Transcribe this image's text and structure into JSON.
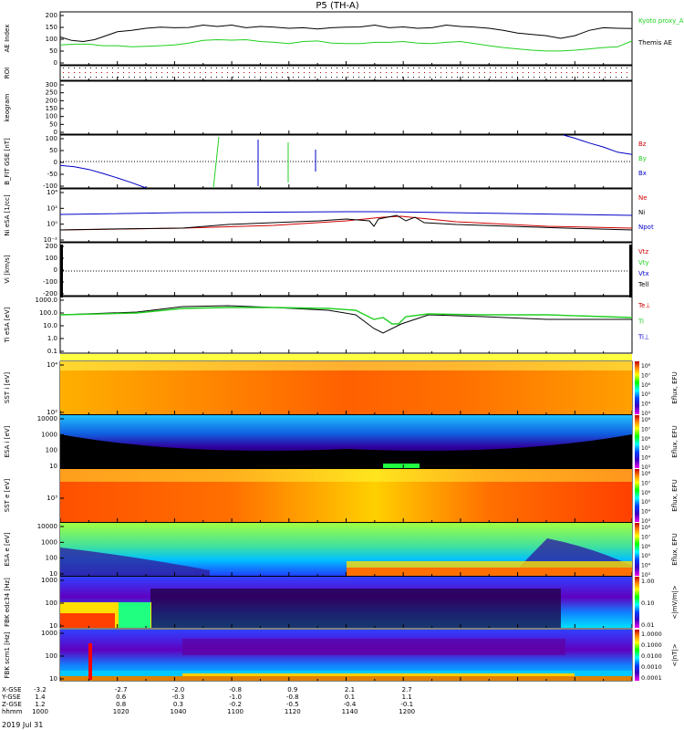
{
  "title": "P5 (TH-A)",
  "date_label": "2019 Jul 31",
  "colors": {
    "red": "#d00000",
    "green": "#20d020",
    "blue": "#0000c8",
    "black": "#000000"
  },
  "chart_data": [
    {
      "panel": "ae_index",
      "type": "line",
      "ylabel": "AE Index",
      "ylim": [
        0,
        200
      ],
      "yticks": [
        "200",
        "150",
        "100",
        "50",
        "0"
      ],
      "legend": [
        {
          "label": "Kyoto proxy_AE",
          "color": "green"
        },
        {
          "label": "Themis AE",
          "color": "black"
        }
      ],
      "series": [
        {
          "name": "Themis AE",
          "color": "black",
          "x": [
            1000,
            1004,
            1008,
            1012,
            1016,
            1020,
            1025,
            1030,
            1035,
            1040,
            1045,
            1050,
            1055,
            1060,
            1065,
            1070,
            1075,
            1080,
            1085,
            1090,
            1095,
            1100,
            1105,
            1110,
            1115,
            1120,
            1125,
            1130,
            1135,
            1140,
            1145,
            1150,
            1155,
            1160,
            1165,
            1170,
            1175,
            1180,
            1185,
            1190,
            1195,
            1200
          ],
          "y": [
            105,
            92,
            88,
            95,
            110,
            125,
            130,
            138,
            142,
            140,
            141,
            150,
            145,
            150,
            140,
            145,
            142,
            138,
            140,
            135,
            140,
            142,
            143,
            150,
            140,
            143,
            138,
            140,
            150,
            145,
            142,
            138,
            130,
            120,
            115,
            110,
            100,
            110,
            130,
            140,
            138,
            137
          ]
        },
        {
          "name": "Kyoto proxy_AE",
          "color": "green",
          "x": [
            1000,
            1005,
            1010,
            1015,
            1020,
            1025,
            1030,
            1035,
            1040,
            1045,
            1050,
            1055,
            1060,
            1065,
            1070,
            1075,
            1080,
            1085,
            1090,
            1095,
            1100,
            1105,
            1110,
            1115,
            1120,
            1125,
            1130,
            1135,
            1140,
            1145,
            1150,
            1155,
            1160,
            1165,
            1170,
            1175,
            1180,
            1185,
            1190,
            1195,
            1200
          ],
          "y": [
            75,
            78,
            78,
            72,
            72,
            68,
            70,
            72,
            75,
            82,
            92,
            95,
            93,
            95,
            88,
            85,
            80,
            88,
            90,
            82,
            80,
            80,
            85,
            85,
            88,
            82,
            80,
            85,
            88,
            80,
            72,
            65,
            60,
            55,
            52,
            52,
            55,
            60,
            65,
            68,
            90
          ]
        }
      ]
    },
    {
      "panel": "roi",
      "type": "scatter",
      "ylabel": "ROI"
    },
    {
      "panel": "keogram",
      "type": "line",
      "ylabel": "keogram",
      "ylim": [
        0,
        300
      ],
      "yticks": [
        "300",
        "250",
        "200",
        "150",
        "100",
        "50",
        "0"
      ]
    },
    {
      "panel": "b_field",
      "type": "line",
      "ylabel": "B_FIT GSE [nT]",
      "ylim": [
        -100,
        100
      ],
      "yticks": [
        "100",
        "50",
        "0",
        "-50",
        "-100"
      ],
      "legend": [
        {
          "label": "Bz",
          "color": "red"
        },
        {
          "label": "By",
          "color": "green"
        },
        {
          "label": "Bx",
          "color": "blue"
        }
      ],
      "series": [
        {
          "name": "Bx",
          "color": "blue",
          "x": [
            1000,
            1005,
            1010,
            1015,
            1020,
            1025,
            1030
          ],
          "y": [
            -15,
            -20,
            -30,
            -45,
            -62,
            -80,
            -100
          ]
        },
        {
          "name": "Bx",
          "color": "blue",
          "x": [
            1176,
            1180,
            1185,
            1190,
            1195,
            1200
          ],
          "y": [
            100,
            88,
            70,
            55,
            35,
            27
          ]
        }
      ]
    },
    {
      "panel": "density",
      "type": "line",
      "ylabel": "Ni eSA [1/cc]",
      "ytick_labels": [
        "10⁴",
        "10²",
        "10⁰",
        "10⁻²"
      ],
      "legend": [
        {
          "label": "Ne",
          "color": "red"
        },
        {
          "label": "Ni",
          "color": "black"
        },
        {
          "label": "Npot",
          "color": "blue"
        }
      ]
    },
    {
      "panel": "velocity",
      "type": "line",
      "ylabel": "Vi [km/s]",
      "ylim": [
        -300,
        300
      ],
      "yticks": [
        "200",
        "100",
        "0",
        "-100",
        "-200"
      ],
      "legend": [
        {
          "label": "Vtz",
          "color": "red"
        },
        {
          "label": "Vty",
          "color": "green"
        },
        {
          "label": "Vtx",
          "color": "blue"
        },
        {
          "label": "Tell",
          "color": "black"
        }
      ]
    },
    {
      "panel": "temperature",
      "type": "line",
      "ylabel": "Ti eSA [eV]",
      "yticks": [
        "1000.0",
        "100.0",
        "10.0",
        "1.0",
        "0.1"
      ],
      "legend": [
        {
          "label": "Te⊥",
          "color": "red"
        },
        {
          "label": "Ti",
          "color": "green"
        },
        {
          "label": "Ti⊥",
          "color": "blue"
        }
      ]
    },
    {
      "panel": "sst_i",
      "type": "heatmap",
      "ylabel": "SST i [eV]",
      "yticks": [
        "10⁴",
        "10²"
      ],
      "cbar_label": "Eflux, EFU"
    },
    {
      "panel": "esa_i",
      "type": "heatmap",
      "ylabel": "ESA i [eV]",
      "yticks": [
        "10000",
        "1000",
        "100",
        "10"
      ],
      "cbar_label": "Eflux, EFU"
    },
    {
      "panel": "sst_e",
      "type": "heatmap",
      "ylabel": "SST e [eV]",
      "yticks": [
        "10³"
      ],
      "cbar_label": "Eflux, EFU"
    },
    {
      "panel": "esa_e",
      "type": "heatmap",
      "ylabel": "ESA e [eV]",
      "yticks": [
        "10000",
        "1000",
        "100",
        "10"
      ],
      "cbar_label": "Eflux, EFU"
    },
    {
      "panel": "fbk_edc",
      "type": "heatmap",
      "ylabel": "FBK edc34 [Hz]",
      "yticks": [
        "1000",
        "100",
        "10"
      ],
      "cbar_label": "<|mV/m|>",
      "cbar_ticks": [
        "1.00",
        "0.10",
        "0.01"
      ]
    },
    {
      "panel": "fbk_scm",
      "type": "heatmap",
      "ylabel": "FBK scm1 [Hz]",
      "yticks": [
        "1000",
        "100",
        "10"
      ],
      "cbar_label": "<|nT|>",
      "cbar_ticks": [
        "1.0000",
        "0.1000",
        "0.0100",
        "0.0010",
        "0.0001"
      ]
    }
  ],
  "colorbar_ticks_eflux": [
    "10⁸",
    "10⁷",
    "10⁶",
    "10⁵",
    "10⁴",
    "10³"
  ],
  "x_axis": {
    "rows": [
      {
        "label": "X-GSE",
        "values": [
          "-3.2",
          "-2.7",
          "-2.0",
          "-0.8",
          "0.9",
          "2.1",
          "2.7"
        ]
      },
      {
        "label": "Y-GSE",
        "values": [
          "1.4",
          "0.6",
          "-0.3",
          "-1.0",
          "-0.8",
          "0.1",
          "1.1"
        ]
      },
      {
        "label": "Z-GSE",
        "values": [
          "1.2",
          "0.8",
          "0.3",
          "-0.2",
          "-0.5",
          "-0.4",
          "-0.1"
        ]
      },
      {
        "label": "hhmm",
        "values": [
          "1000",
          "1020",
          "1040",
          "1100",
          "1120",
          "1140",
          "1200"
        ]
      }
    ]
  }
}
